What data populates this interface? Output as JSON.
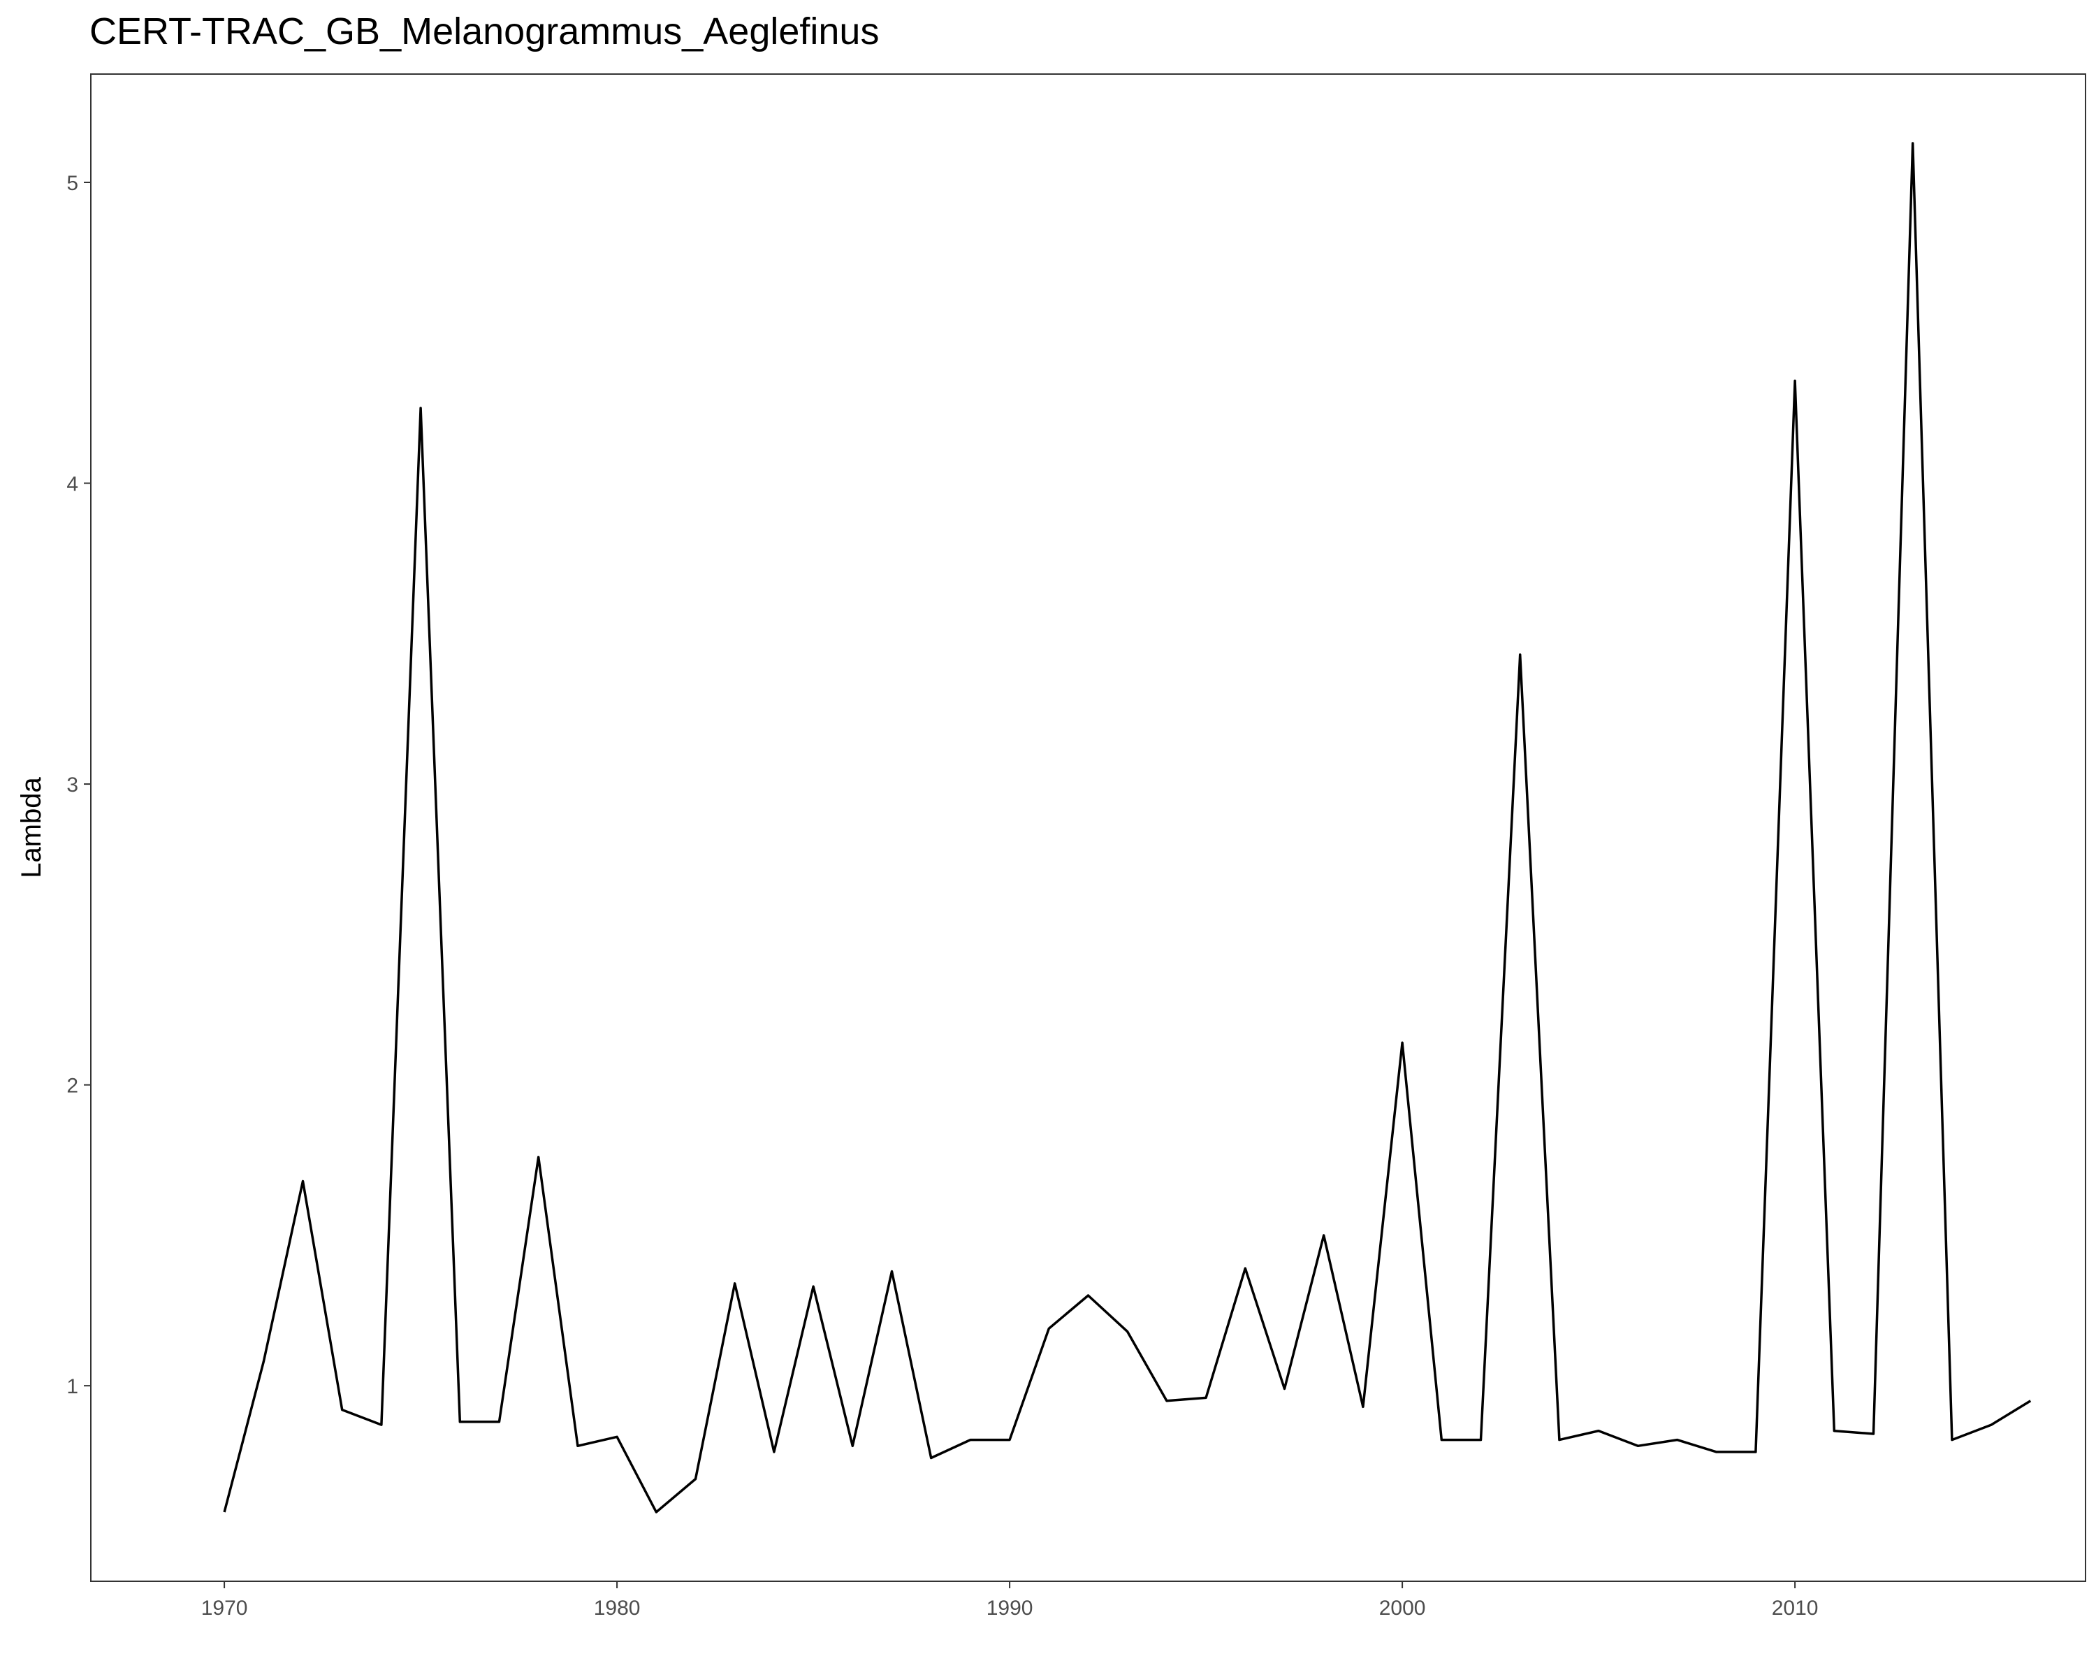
{
  "chart_data": {
    "type": "line",
    "title": "CERT-TRAC_GB_Melanogrammus_Aeglefinus",
    "xlabel": "",
    "ylabel": "Lambda",
    "xlim": [
      1966.6,
      2017.4
    ],
    "ylim": [
      0.35,
      5.36
    ],
    "x_ticks": [
      1970,
      1980,
      1990,
      2000,
      2010
    ],
    "y_ticks": [
      1,
      2,
      3,
      4,
      5
    ],
    "grid": false,
    "line_color": "#000000",
    "series": [
      {
        "x": [
          1970,
          1971,
          1972,
          1973,
          1974,
          1975,
          1976,
          1977,
          1978,
          1979,
          1980,
          1981,
          1982,
          1983,
          1984,
          1985,
          1986,
          1987,
          1988,
          1989,
          1990,
          1991,
          1992,
          1993,
          1994,
          1995,
          1996,
          1997,
          1998,
          1999,
          2000,
          2001,
          2002,
          2003,
          2004,
          2005,
          2006,
          2007,
          2008,
          2009,
          2010,
          2011,
          2012,
          2013,
          2014,
          2015,
          2016
        ],
        "values": [
          0.58,
          1.08,
          1.68,
          0.92,
          0.87,
          4.25,
          0.88,
          0.88,
          1.76,
          0.8,
          0.83,
          0.58,
          0.69,
          1.34,
          0.78,
          1.33,
          0.8,
          1.38,
          0.76,
          0.82,
          0.82,
          1.19,
          1.3,
          1.18,
          0.95,
          0.96,
          1.39,
          0.99,
          1.5,
          0.93,
          2.14,
          0.82,
          0.82,
          3.43,
          0.82,
          0.85,
          0.8,
          0.82,
          0.78,
          0.78,
          4.34,
          0.85,
          0.84,
          5.13,
          0.82,
          0.87,
          0.95
        ]
      }
    ]
  }
}
